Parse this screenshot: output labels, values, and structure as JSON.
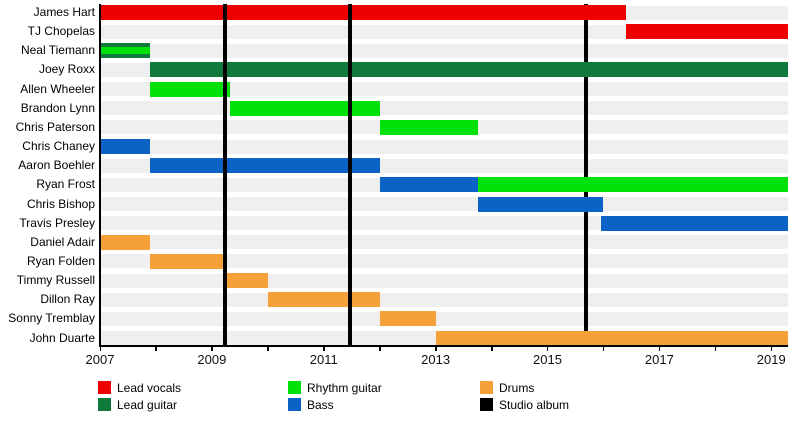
{
  "chart_data": {
    "type": "timeline",
    "x_axis": {
      "start": 2007,
      "end": 2019.3,
      "ticks": [
        2007,
        2008,
        2009,
        2010,
        2011,
        2012,
        2013,
        2014,
        2015,
        2016,
        2017,
        2018,
        2019
      ],
      "labels": [
        2007,
        2009,
        2011,
        2013,
        2015,
        2017,
        2019
      ]
    },
    "colors": {
      "lead_vocals": "#ef0000",
      "lead_guitar": "#107a3d",
      "rhythm_guitar": "#00e109",
      "bass": "#0b63c5",
      "drums": "#f6a03a",
      "studio_album": "#000000",
      "row_track": "#efefef",
      "axis": "#000000"
    },
    "albums": [
      {
        "at": 2009.24,
        "layer": "front"
      },
      {
        "at": 2011.47,
        "layer": "front"
      },
      {
        "at": 2015.68,
        "layer": "back"
      }
    ],
    "members": [
      {
        "name": "James Hart",
        "bars": [
          {
            "start": 2007,
            "end": 2016.4,
            "role": "lead_vocals"
          }
        ]
      },
      {
        "name": "TJ Chopelas",
        "bars": [
          {
            "start": 2016.4,
            "end": 2019.3,
            "role": "lead_vocals"
          }
        ]
      },
      {
        "name": "Neal Tiemann",
        "bars": [
          {
            "start": 2007,
            "end": 2007.9,
            "role": "lead_guitar",
            "overlay_role": "rhythm_guitar"
          }
        ]
      },
      {
        "name": "Joey Roxx",
        "bars": [
          {
            "start": 2007.9,
            "end": 2019.3,
            "role": "lead_guitar"
          }
        ]
      },
      {
        "name": "Allen Wheeler",
        "bars": [
          {
            "start": 2007.9,
            "end": 2009.33,
            "role": "rhythm_guitar"
          }
        ]
      },
      {
        "name": "Brandon Lynn",
        "bars": [
          {
            "start": 2009.33,
            "end": 2012.0,
            "role": "rhythm_guitar"
          }
        ]
      },
      {
        "name": "Chris Paterson",
        "bars": [
          {
            "start": 2012.0,
            "end": 2013.75,
            "role": "rhythm_guitar"
          }
        ]
      },
      {
        "name": "Chris Chaney",
        "bars": [
          {
            "start": 2007,
            "end": 2007.9,
            "role": "bass"
          }
        ]
      },
      {
        "name": "Aaron Boehler",
        "bars": [
          {
            "start": 2007.9,
            "end": 2012.0,
            "role": "bass"
          }
        ]
      },
      {
        "name": "Ryan Frost",
        "bars": [
          {
            "start": 2012.0,
            "end": 2013.75,
            "role": "bass"
          },
          {
            "start": 2013.75,
            "end": 2019.3,
            "role": "rhythm_guitar"
          }
        ]
      },
      {
        "name": "Chris Bishop",
        "bars": [
          {
            "start": 2013.75,
            "end": 2016.0,
            "role": "bass"
          }
        ]
      },
      {
        "name": "Travis Presley",
        "bars": [
          {
            "start": 2015.95,
            "end": 2019.3,
            "role": "bass"
          }
        ]
      },
      {
        "name": "Daniel Adair",
        "bars": [
          {
            "start": 2007,
            "end": 2007.9,
            "role": "drums"
          }
        ]
      },
      {
        "name": "Ryan Folden",
        "bars": [
          {
            "start": 2007.9,
            "end": 2009.2,
            "role": "drums"
          }
        ]
      },
      {
        "name": "Timmy Russell",
        "bars": [
          {
            "start": 2009.2,
            "end": 2010.0,
            "role": "drums"
          }
        ]
      },
      {
        "name": "Dillon Ray",
        "bars": [
          {
            "start": 2010.0,
            "end": 2012.0,
            "role": "drums"
          }
        ]
      },
      {
        "name": "Sonny Tremblay",
        "bars": [
          {
            "start": 2012.0,
            "end": 2013.0,
            "role": "drums"
          }
        ]
      },
      {
        "name": "John Duarte",
        "bars": [
          {
            "start": 2013.0,
            "end": 2019.3,
            "role": "drums"
          }
        ]
      }
    ],
    "legend": [
      {
        "label": "Lead vocals",
        "role": "lead_vocals"
      },
      {
        "label": "Lead guitar",
        "role": "lead_guitar"
      },
      {
        "label": "Rhythm guitar",
        "role": "rhythm_guitar"
      },
      {
        "label": "Bass",
        "role": "bass"
      },
      {
        "label": "Drums",
        "role": "drums"
      },
      {
        "label": "Studio album",
        "role": "studio_album"
      }
    ]
  }
}
